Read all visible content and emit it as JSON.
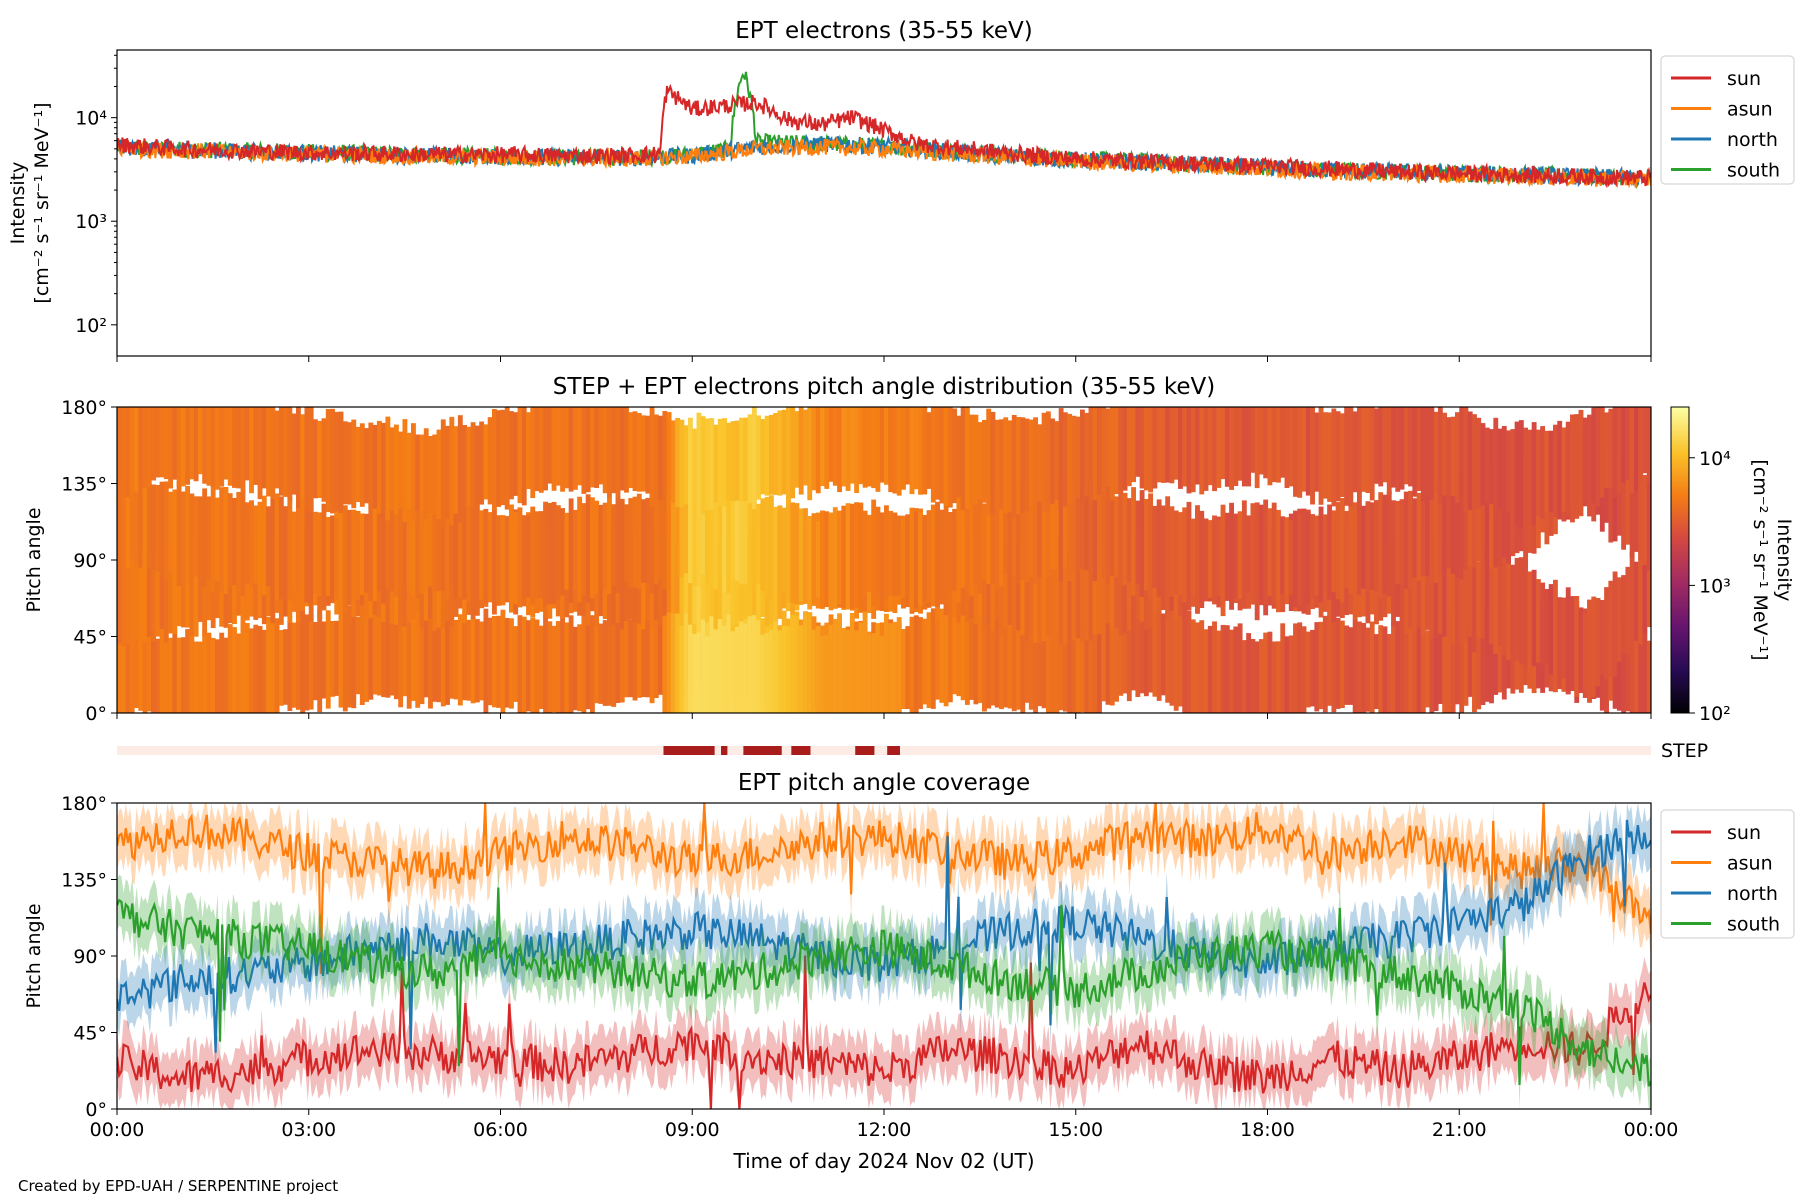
{
  "figure": {
    "credit": "Created by EPD-UAH / SERPENTINE project",
    "xlabel": "Time of day 2024 Nov 02 (UT)",
    "xticks": [
      "00:00",
      "03:00",
      "06:00",
      "09:00",
      "12:00",
      "15:00",
      "18:00",
      "21:00",
      "00:00"
    ]
  },
  "chart_data": [
    {
      "type": "line",
      "title": "EPT electrons (35-55 keV)",
      "ylabel_line1": "Intensity",
      "ylabel_line2": "[cm⁻² s⁻¹ sr⁻¹ MeV⁻¹]",
      "yscale": "log",
      "ylim": [
        50,
        45000
      ],
      "yticks": [
        "10²",
        "10³",
        "10⁴"
      ],
      "ytick_values": [
        100,
        1000,
        10000
      ],
      "xlim_hours": [
        0,
        24
      ],
      "legend_position": "outside-right",
      "series": [
        {
          "name": "sun",
          "color": "#d62728",
          "x": [
            0,
            1,
            2,
            3,
            4,
            5,
            6,
            7,
            8,
            8.5,
            8.6,
            9,
            9.5,
            10,
            10.5,
            11,
            11.5,
            12,
            12.5,
            13,
            14,
            15,
            16,
            17,
            18,
            19,
            20,
            21,
            22,
            23,
            24
          ],
          "values": [
            5500,
            5000,
            4800,
            4600,
            4500,
            4400,
            4400,
            4300,
            4300,
            4500,
            18000,
            12000,
            13000,
            14000,
            9500,
            8500,
            10000,
            7500,
            5600,
            5200,
            4500,
            4000,
            3800,
            3600,
            3400,
            3200,
            3000,
            2900,
            2800,
            2700,
            2600
          ]
        },
        {
          "name": "asun",
          "color": "#ff7f0e",
          "x": [
            0,
            2,
            4,
            6,
            8,
            9,
            10,
            11,
            12,
            13,
            14,
            15,
            16,
            17,
            18,
            19,
            20,
            21,
            22,
            23,
            24
          ],
          "values": [
            5000,
            4600,
            4300,
            4100,
            4000,
            4200,
            5000,
            5200,
            5000,
            4500,
            4100,
            3800,
            3600,
            3400,
            3200,
            3000,
            2900,
            2800,
            2700,
            2600,
            2500
          ]
        },
        {
          "name": "north",
          "color": "#1f77b4",
          "x": [
            0,
            2,
            4,
            6,
            8,
            9,
            10,
            11,
            12,
            13,
            14,
            15,
            16,
            17,
            18,
            19,
            20,
            21,
            22,
            23,
            24
          ],
          "values": [
            5200,
            4700,
            4400,
            4200,
            4100,
            4300,
            5200,
            5600,
            5300,
            4700,
            4200,
            3900,
            3700,
            3500,
            3300,
            3100,
            3000,
            2900,
            2800,
            2700,
            2600
          ]
        },
        {
          "name": "south",
          "color": "#2ca02c",
          "x": [
            0,
            2,
            4,
            6,
            8,
            9,
            9.6,
            9.8,
            10,
            11,
            12,
            13,
            14,
            15,
            16,
            17,
            18,
            19,
            20,
            21,
            22,
            23,
            24
          ],
          "values": [
            5100,
            4800,
            4500,
            4200,
            4100,
            4400,
            5000,
            28000,
            5800,
            5600,
            5300,
            4800,
            4300,
            4000,
            3800,
            3500,
            3300,
            3100,
            3000,
            2900,
            2800,
            2700,
            2600
          ]
        }
      ]
    },
    {
      "type": "heatmap",
      "title": "STEP + EPT electrons pitch angle distribution (35-55 keV)",
      "ylabel": "Pitch angle",
      "yticks": [
        "0°",
        "45°",
        "90°",
        "135°",
        "180°"
      ],
      "ytick_values": [
        0,
        45,
        90,
        135,
        180
      ],
      "ylim": [
        0,
        180
      ],
      "xlim_hours": [
        0,
        24
      ],
      "colorbar": {
        "label_line1": "Intensity",
        "label_line2": "[cm⁻² s⁻¹ sr⁻¹ MeV⁻¹]",
        "scale": "log",
        "range": [
          100,
          25000
        ],
        "ticks": [
          "10²",
          "10³",
          "10⁴"
        ],
        "tick_values": [
          100,
          1000,
          10000
        ],
        "colormap": "inferno"
      },
      "intensity_profile_hours": [
        0,
        8.6,
        9,
        10,
        11,
        12,
        13,
        15,
        16.5,
        18,
        21,
        24
      ],
      "intensity_profile_values": [
        4500,
        4300,
        12000,
        11000,
        5500,
        5000,
        4500,
        3800,
        3000,
        2900,
        2800,
        2600
      ]
    },
    {
      "type": "bar",
      "label": "STEP",
      "description_color_on": "#a81c1c",
      "description_color_off": "#fdebe6",
      "active_intervals_hours": [
        [
          8.55,
          9.35
        ],
        [
          9.45,
          9.55
        ],
        [
          9.8,
          10.4
        ],
        [
          10.55,
          10.85
        ],
        [
          11.55,
          11.85
        ],
        [
          12.05,
          12.25
        ]
      ]
    },
    {
      "type": "line",
      "title": "EPT pitch angle coverage",
      "ylabel": "Pitch angle",
      "yticks": [
        "0°",
        "45°",
        "90°",
        "135°",
        "180°"
      ],
      "ytick_values": [
        0,
        45,
        90,
        135,
        180
      ],
      "ylim": [
        0,
        180
      ],
      "xlim_hours": [
        0,
        24
      ],
      "legend_position": "outside-right",
      "series": [
        {
          "name": "sun",
          "color": "#d62728",
          "x": [
            0,
            1,
            2,
            3,
            4,
            5,
            6,
            7,
            8,
            9,
            10,
            11,
            12,
            13,
            14,
            15,
            16,
            17,
            18,
            19,
            20,
            21,
            22,
            23,
            24
          ],
          "values": [
            28,
            18,
            22,
            30,
            35,
            32,
            30,
            25,
            32,
            40,
            30,
            28,
            22,
            35,
            30,
            22,
            40,
            25,
            18,
            30,
            22,
            30,
            40,
            35,
            75
          ]
        },
        {
          "name": "asun",
          "color": "#ff7f0e",
          "x": [
            0,
            1,
            2,
            3,
            4,
            5,
            6,
            7,
            8,
            9,
            10,
            11,
            12,
            13,
            14,
            15,
            16,
            17,
            18,
            19,
            20,
            21,
            22,
            23,
            24
          ],
          "values": [
            155,
            165,
            160,
            150,
            145,
            140,
            150,
            160,
            155,
            145,
            150,
            158,
            160,
            152,
            145,
            150,
            162,
            158,
            165,
            150,
            160,
            150,
            140,
            145,
            110
          ]
        },
        {
          "name": "north",
          "color": "#1f77b4",
          "x": [
            0,
            1,
            2,
            3,
            4,
            5,
            6,
            7,
            8,
            9,
            10,
            11,
            12,
            13,
            14,
            15,
            16,
            17,
            18,
            19,
            20,
            21,
            22,
            23,
            24
          ],
          "values": [
            65,
            75,
            80,
            85,
            95,
            100,
            90,
            95,
            100,
            105,
            100,
            90,
            85,
            95,
            105,
            110,
            100,
            90,
            85,
            95,
            100,
            110,
            120,
            150,
            165
          ]
        },
        {
          "name": "south",
          "color": "#2ca02c",
          "x": [
            0,
            1,
            2,
            3,
            4,
            5,
            6,
            7,
            8,
            9,
            10,
            11,
            12,
            13,
            14,
            15,
            16,
            17,
            18,
            19,
            20,
            21,
            22,
            23,
            24
          ],
          "values": [
            115,
            105,
            100,
            95,
            85,
            80,
            90,
            85,
            80,
            75,
            80,
            90,
            95,
            85,
            75,
            70,
            80,
            90,
            95,
            85,
            80,
            70,
            60,
            35,
            20
          ]
        }
      ]
    }
  ]
}
